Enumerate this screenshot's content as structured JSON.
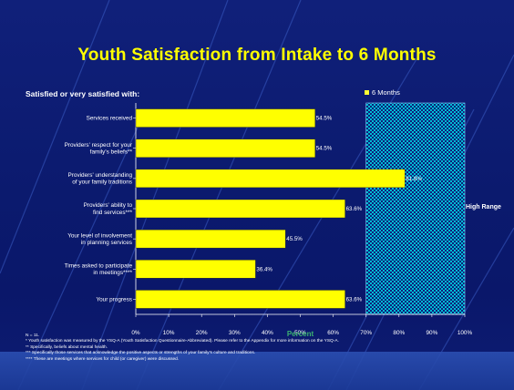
{
  "slide": {
    "title": "Youth Satisfaction from Intake to 6 Months",
    "subtitle": "Satisfied or very satisfied with:",
    "legend_label": "6 Months",
    "high_range_label": "High Range",
    "footnotes": [
      "N = 11.",
      "* Youth satisfaction was measured by the YSQ-A (Youth Satisfaction Questionnaire-Abbreviated). Please refer to the Appendix for more information on the YSQ-A.",
      "** Specifically, beliefs about mental health.",
      "*** Specifically those services that acknowledge the positive aspects or strengths of your family's culture and traditions.",
      "**** These are meetings where services for child (or caregiver) were discussed."
    ],
    "colors": {
      "bar": "#ffff00",
      "high_range": "#00bcd4",
      "background": "#0b1a6e",
      "title": "#ffff00",
      "axis_title": "#3cb371"
    }
  },
  "chart_data": {
    "type": "bar",
    "orientation": "horizontal",
    "categories": [
      [
        "Services received"
      ],
      [
        "Providers' respect for your",
        "family's beliefs**"
      ],
      [
        "Providers' understanding",
        "of your family traditions"
      ],
      [
        "Providers' ability to",
        "find services***"
      ],
      [
        "Your level of involvement",
        "in planning services"
      ],
      [
        "Times asked to participate",
        "in meetings****"
      ],
      [
        "Your progress"
      ]
    ],
    "series": [
      {
        "name": "6 Months",
        "values": [
          54.5,
          54.5,
          81.8,
          63.6,
          45.5,
          36.4,
          63.6
        ],
        "labels": [
          "54.5%",
          "54.5%",
          "81.8%",
          "63.6%",
          "45.5%",
          "36.4%",
          "63.6%"
        ]
      }
    ],
    "xlabel": "Percent",
    "xlim": [
      0,
      100
    ],
    "xticks": [
      "0%",
      "10%",
      "20%",
      "30%",
      "40%",
      "50%",
      "60%",
      "70%",
      "80%",
      "90%",
      "100%"
    ],
    "high_range": [
      70,
      100
    ],
    "grid": false,
    "legend_position": "top-right"
  }
}
